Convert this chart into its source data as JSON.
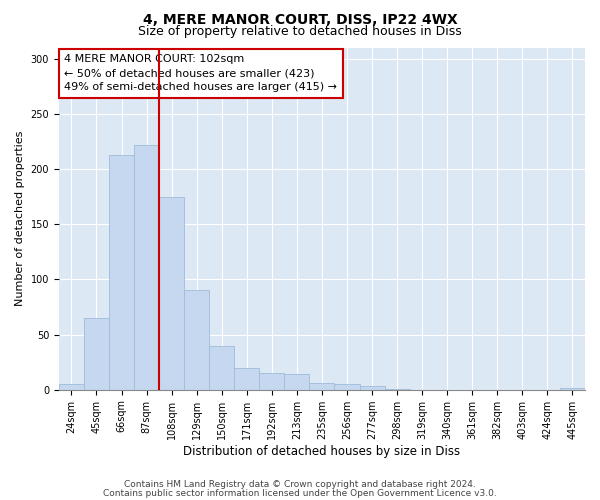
{
  "title1": "4, MERE MANOR COURT, DISS, IP22 4WX",
  "title2": "Size of property relative to detached houses in Diss",
  "xlabel": "Distribution of detached houses by size in Diss",
  "ylabel": "Number of detached properties",
  "bar_labels": [
    "24sqm",
    "45sqm",
    "66sqm",
    "87sqm",
    "108sqm",
    "129sqm",
    "150sqm",
    "171sqm",
    "192sqm",
    "213sqm",
    "235sqm",
    "256sqm",
    "277sqm",
    "298sqm",
    "319sqm",
    "340sqm",
    "361sqm",
    "382sqm",
    "403sqm",
    "424sqm",
    "445sqm"
  ],
  "bar_values": [
    5,
    65,
    213,
    222,
    175,
    90,
    40,
    20,
    15,
    14,
    6,
    5,
    3,
    1,
    0,
    0,
    0,
    0,
    0,
    0,
    2
  ],
  "bar_color": "#c5d8ef",
  "bar_edge_color": "#a0bcd8",
  "vline_x_index": 4,
  "vline_color": "#cc0000",
  "annotation_text": "4 MERE MANOR COURT: 102sqm\n← 50% of detached houses are smaller (423)\n49% of semi-detached houses are larger (415) →",
  "annotation_box_facecolor": "#ffffff",
  "annotation_box_edgecolor": "#cc0000",
  "ylim": [
    0,
    310
  ],
  "yticks": [
    0,
    50,
    100,
    150,
    200,
    250,
    300
  ],
  "bg_color": "#ffffff",
  "plot_bg": "#dde8f5",
  "grid_color": "#ffffff",
  "footer1": "Contains HM Land Registry data © Crown copyright and database right 2024.",
  "footer2": "Contains public sector information licensed under the Open Government Licence v3.0.",
  "title1_fontsize": 10,
  "title2_fontsize": 9,
  "xlabel_fontsize": 8.5,
  "ylabel_fontsize": 8,
  "tick_fontsize": 7,
  "annotation_fontsize": 8,
  "footer_fontsize": 6.5
}
